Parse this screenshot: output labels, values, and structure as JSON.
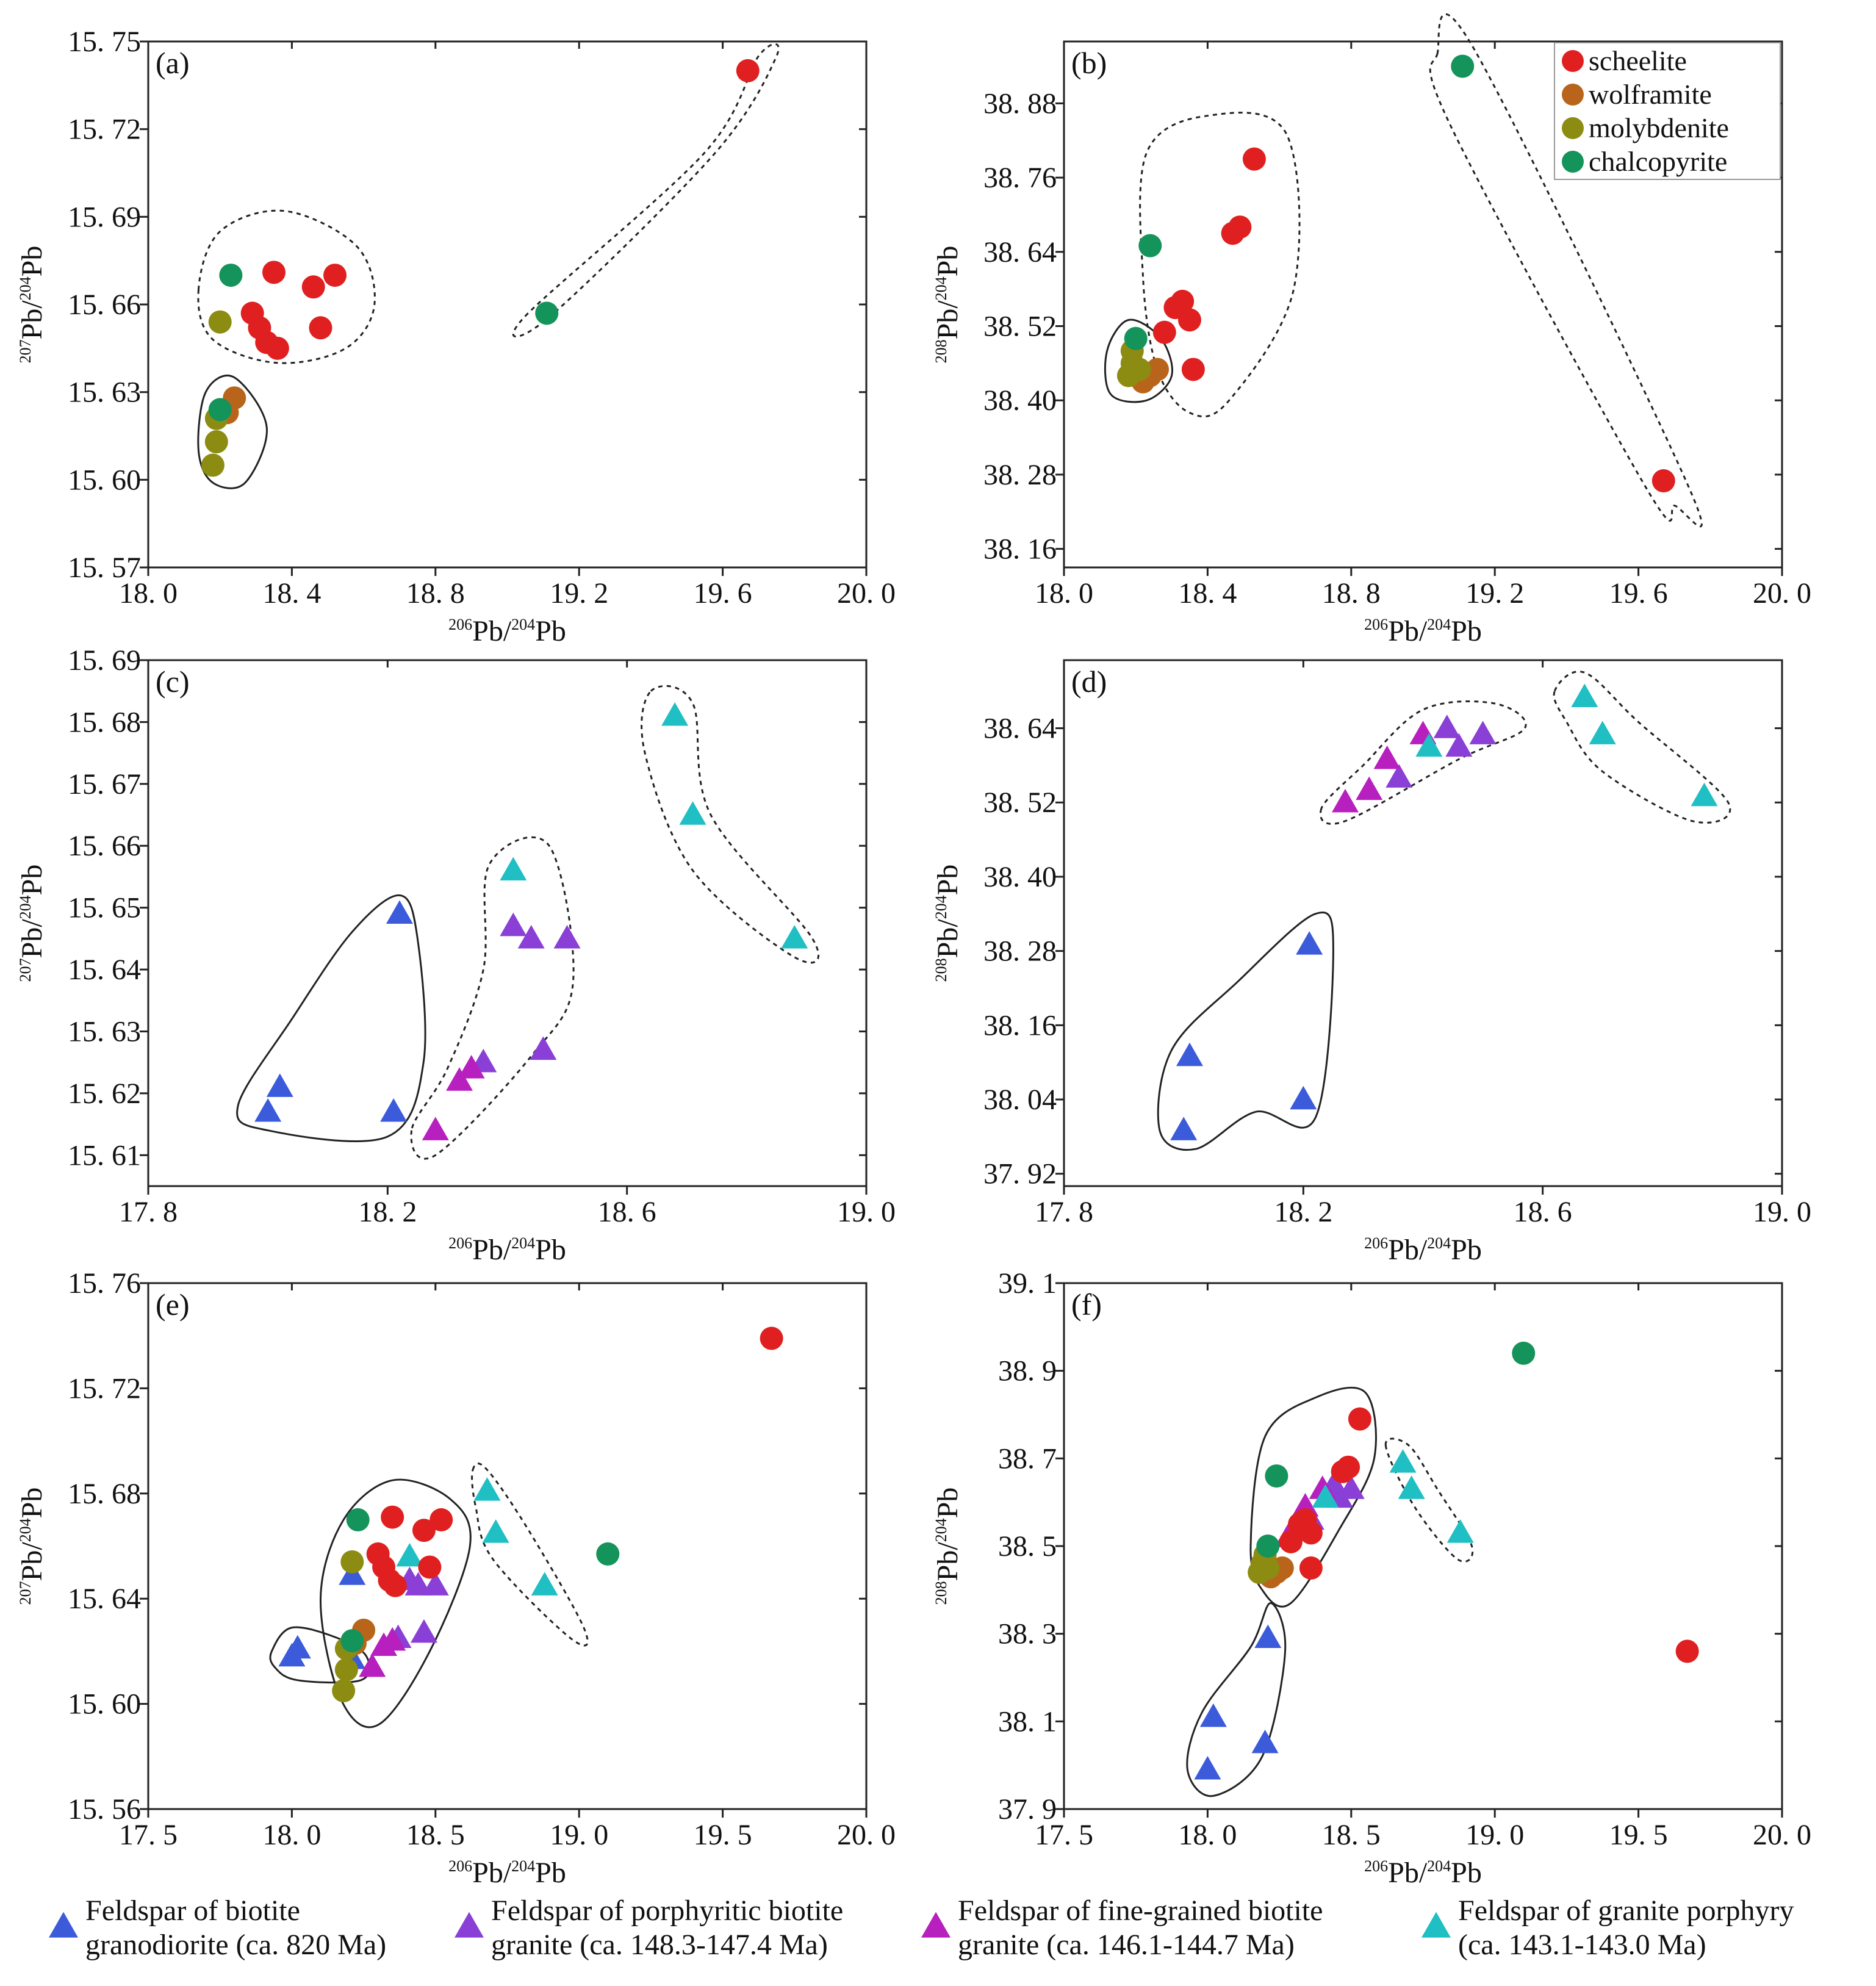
{
  "colors": {
    "scheelite": "#e02020",
    "wolframite": "#b8651b",
    "molybdenite": "#8c8c12",
    "chalcopyrite": "#14935a",
    "biotite_granodiorite": "#3b5bdb",
    "porphyritic_biotite_granite": "#8a3fd6",
    "fine_grained_biotite_granite": "#b81fbf",
    "granite_porphyry": "#1fbfc4"
  },
  "mineral_legend": [
    {
      "key": "scheelite",
      "label": "scheelite"
    },
    {
      "key": "wolframite",
      "label": "wolframite"
    },
    {
      "key": "molybdenite",
      "label": "molybdenite"
    },
    {
      "key": "chalcopyrite",
      "label": "chalcopyrite"
    }
  ],
  "bottom_legend": [
    {
      "key": "biotite_granodiorite",
      "line1": "Feldspar of biotite",
      "line2": "granodiorite (ca. 820 Ma)"
    },
    {
      "key": "porphyritic_biotite_granite",
      "line1": "Feldspar of porphyritic biotite",
      "line2": "granite (ca. 148.3-147.4 Ma)"
    },
    {
      "key": "fine_grained_biotite_granite",
      "line1": "Feldspar of fine-grained biotite",
      "line2": "granite (ca. 146.1-144.7 Ma)"
    },
    {
      "key": "granite_porphyry",
      "line1": "Feldspar of granite  porphyry",
      "line2": "(ca. 143.1-143.0 Ma)"
    }
  ],
  "axis_text": {
    "x_sup": "206",
    "x_rest": "Pb/",
    "x_sup2": "204",
    "x_tail": "Pb",
    "y207_sup": "207",
    "y208_sup": "208",
    "y_rest": "Pb/",
    "y_sup2": "204",
    "y_tail": "Pb"
  },
  "chart_data": [
    {
      "id": "a",
      "label": "(a)",
      "type": "scatter",
      "xlabel": "206Pb/204Pb",
      "ylabel": "207Pb/204Pb",
      "xlim": [
        18.0,
        20.0
      ],
      "ylim": [
        15.57,
        15.75
      ],
      "xticks": [
        "18. 0",
        "18. 4",
        "18. 8",
        "19. 2",
        "19. 6",
        "20. 0"
      ],
      "yticks": [
        "15. 57",
        "15. 60",
        "15. 63",
        "15. 66",
        "15. 69",
        "15. 72",
        "15. 75"
      ],
      "series": [
        {
          "name": "scheelite",
          "marker": "circle",
          "points": [
            [
              18.29,
              15.657
            ],
            [
              18.31,
              15.652
            ],
            [
              18.33,
              15.647
            ],
            [
              18.36,
              15.645
            ],
            [
              18.35,
              15.671
            ],
            [
              18.46,
              15.666
            ],
            [
              18.52,
              15.67
            ],
            [
              18.48,
              15.652
            ],
            [
              19.67,
              15.74
            ]
          ]
        },
        {
          "name": "wolframite",
          "marker": "circle",
          "points": [
            [
              18.22,
              15.623
            ],
            [
              18.24,
              15.628
            ]
          ]
        },
        {
          "name": "molybdenite",
          "marker": "circle",
          "points": [
            [
              18.2,
              15.654
            ],
            [
              18.19,
              15.621
            ],
            [
              18.19,
              15.613
            ],
            [
              18.18,
              15.605
            ]
          ]
        },
        {
          "name": "chalcopyrite",
          "marker": "circle",
          "points": [
            [
              18.23,
              15.67
            ],
            [
              18.2,
              15.624
            ],
            [
              19.11,
              15.657
            ]
          ]
        }
      ]
    },
    {
      "id": "b",
      "label": "(b)",
      "type": "scatter",
      "xlabel": "206Pb/204Pb",
      "ylabel": "208Pb/204Pb",
      "xlim": [
        18.0,
        20.0
      ],
      "ylim": [
        38.13,
        38.98
      ],
      "xticks": [
        "18. 0",
        "18. 4",
        "18. 8",
        "19. 2",
        "19. 6",
        "20. 0"
      ],
      "yticks": [
        "38. 16",
        "38. 28",
        "38. 40",
        "38. 52",
        "38. 64",
        "38. 76",
        "38. 88"
      ],
      "series": [
        {
          "name": "scheelite",
          "marker": "circle",
          "points": [
            [
              18.28,
              38.51
            ],
            [
              18.31,
              38.55
            ],
            [
              18.33,
              38.56
            ],
            [
              18.35,
              38.53
            ],
            [
              18.36,
              38.45
            ],
            [
              18.47,
              38.67
            ],
            [
              18.49,
              38.68
            ],
            [
              18.53,
              38.79
            ],
            [
              19.67,
              38.27
            ]
          ]
        },
        {
          "name": "wolframite",
          "marker": "circle",
          "points": [
            [
              18.24,
              38.44
            ],
            [
              18.22,
              38.43
            ],
            [
              18.26,
              38.45
            ]
          ]
        },
        {
          "name": "molybdenite",
          "marker": "circle",
          "points": [
            [
              18.19,
              38.48
            ],
            [
              18.19,
              38.46
            ],
            [
              18.18,
              38.44
            ],
            [
              18.21,
              38.45
            ]
          ]
        },
        {
          "name": "chalcopyrite",
          "marker": "circle",
          "points": [
            [
              18.2,
              38.5
            ],
            [
              18.24,
              38.65
            ],
            [
              19.11,
              38.94
            ]
          ]
        }
      ]
    },
    {
      "id": "c",
      "label": "(c)",
      "type": "scatter",
      "xlabel": "206Pb/204Pb",
      "ylabel": "207Pb/204Pb",
      "xlim": [
        17.8,
        19.0
      ],
      "ylim": [
        15.605,
        15.69
      ],
      "xticks": [
        "17. 8",
        "18. 2",
        "18. 6",
        "19. 0"
      ],
      "yticks": [
        "15. 61",
        "15. 62",
        "15. 63",
        "15. 64",
        "15. 65",
        "15. 66",
        "15. 67",
        "15. 68",
        "15. 69"
      ],
      "series": [
        {
          "name": "biotite_granodiorite",
          "marker": "triangle",
          "points": [
            [
              18.0,
              15.617
            ],
            [
              18.02,
              15.621
            ],
            [
              18.21,
              15.617
            ],
            [
              18.22,
              15.649
            ]
          ]
        },
        {
          "name": "porphyritic_biotite_granite",
          "marker": "triangle",
          "points": [
            [
              18.36,
              15.625
            ],
            [
              18.41,
              15.647
            ],
            [
              18.44,
              15.645
            ],
            [
              18.46,
              15.627
            ],
            [
              18.5,
              15.645
            ]
          ]
        },
        {
          "name": "fine_grained_biotite_granite",
          "marker": "triangle",
          "points": [
            [
              18.28,
              15.614
            ],
            [
              18.32,
              15.622
            ],
            [
              18.34,
              15.624
            ]
          ]
        },
        {
          "name": "granite_porphyry",
          "marker": "triangle",
          "points": [
            [
              18.41,
              15.656
            ],
            [
              18.68,
              15.681
            ],
            [
              18.71,
              15.665
            ],
            [
              18.88,
              15.645
            ]
          ]
        }
      ]
    },
    {
      "id": "d",
      "label": "(d)",
      "type": "scatter",
      "xlabel": "206Pb/204Pb",
      "ylabel": "208Pb/204Pb",
      "xlim": [
        17.8,
        19.0
      ],
      "ylim": [
        37.9,
        38.75
      ],
      "xticks": [
        "17. 8",
        "18. 2",
        "18. 6",
        "19. 0"
      ],
      "yticks": [
        "37. 92",
        "38. 04",
        "38. 16",
        "38. 28",
        "38. 40",
        "38. 52",
        "38. 64"
      ],
      "series": [
        {
          "name": "biotite_granodiorite",
          "marker": "triangle",
          "points": [
            [
              18.0,
              37.99
            ],
            [
              18.01,
              38.11
            ],
            [
              18.2,
              38.04
            ],
            [
              18.21,
              38.29
            ]
          ]
        },
        {
          "name": "porphyritic_biotite_granite",
          "marker": "triangle",
          "points": [
            [
              18.36,
              38.56
            ],
            [
              18.44,
              38.64
            ],
            [
              18.46,
              38.61
            ],
            [
              18.5,
              38.63
            ]
          ]
        },
        {
          "name": "fine_grained_biotite_granite",
          "marker": "triangle",
          "points": [
            [
              18.27,
              38.52
            ],
            [
              18.31,
              38.54
            ],
            [
              18.34,
              38.59
            ],
            [
              18.4,
              38.63
            ]
          ]
        },
        {
          "name": "granite_porphyry",
          "marker": "triangle",
          "points": [
            [
              18.41,
              38.61
            ],
            [
              18.67,
              38.69
            ],
            [
              18.7,
              38.63
            ],
            [
              18.87,
              38.53
            ]
          ]
        }
      ]
    },
    {
      "id": "e",
      "label": "(e)",
      "type": "scatter",
      "xlabel": "206Pb/204Pb",
      "ylabel": "207Pb/204Pb",
      "xlim": [
        17.5,
        20.0
      ],
      "ylim": [
        15.56,
        15.76
      ],
      "xticks": [
        "17. 5",
        "18. 0",
        "18. 5",
        "19. 0",
        "19. 5",
        "20. 0"
      ],
      "yticks": [
        "15. 56",
        "15. 60",
        "15. 64",
        "15. 68",
        "15. 72",
        "15. 76"
      ],
      "series": [
        {
          "name": "biotite_granodiorite",
          "marker": "triangle",
          "points": [
            [
              18.0,
              15.618
            ],
            [
              18.02,
              15.621
            ],
            [
              18.21,
              15.617
            ],
            [
              18.21,
              15.649
            ]
          ]
        },
        {
          "name": "porphyritic_biotite_granite",
          "marker": "triangle",
          "points": [
            [
              18.37,
              15.625
            ],
            [
              18.41,
              15.647
            ],
            [
              18.44,
              15.645
            ],
            [
              18.46,
              15.627
            ],
            [
              18.5,
              15.645
            ]
          ]
        },
        {
          "name": "fine_grained_biotite_granite",
          "marker": "triangle",
          "points": [
            [
              18.28,
              15.614
            ],
            [
              18.32,
              15.622
            ],
            [
              18.35,
              15.624
            ]
          ]
        },
        {
          "name": "granite_porphyry",
          "marker": "triangle",
          "points": [
            [
              18.41,
              15.656
            ],
            [
              18.68,
              15.681
            ],
            [
              18.71,
              15.665
            ],
            [
              18.88,
              15.645
            ]
          ]
        },
        {
          "name": "scheelite",
          "marker": "circle",
          "points": [
            [
              18.3,
              15.657
            ],
            [
              18.32,
              15.652
            ],
            [
              18.34,
              15.647
            ],
            [
              18.36,
              15.645
            ],
            [
              18.35,
              15.671
            ],
            [
              18.46,
              15.666
            ],
            [
              18.52,
              15.67
            ],
            [
              18.48,
              15.652
            ],
            [
              19.67,
              15.739
            ]
          ]
        },
        {
          "name": "wolframite",
          "marker": "circle",
          "points": [
            [
              18.22,
              15.623
            ],
            [
              18.25,
              15.628
            ]
          ]
        },
        {
          "name": "molybdenite",
          "marker": "circle",
          "points": [
            [
              18.21,
              15.654
            ],
            [
              18.19,
              15.621
            ],
            [
              18.19,
              15.613
            ],
            [
              18.18,
              15.605
            ]
          ]
        },
        {
          "name": "chalcopyrite",
          "marker": "circle",
          "points": [
            [
              18.23,
              15.67
            ],
            [
              18.21,
              15.624
            ],
            [
              19.1,
              15.657
            ]
          ]
        }
      ]
    },
    {
      "id": "f",
      "label": "(f)",
      "type": "scatter",
      "xlabel": "206Pb/204Pb",
      "ylabel": "208Pb/204Pb",
      "xlim": [
        17.5,
        20.0
      ],
      "ylim": [
        37.9,
        39.1
      ],
      "xticks": [
        "17. 5",
        "18. 0",
        "18. 5",
        "19. 0",
        "19. 5",
        "20. 0"
      ],
      "yticks": [
        "37. 9",
        "38. 1",
        "38. 3",
        "38. 5",
        "38. 7",
        "38. 9",
        "39. 1"
      ],
      "series": [
        {
          "name": "biotite_granodiorite",
          "marker": "triangle",
          "points": [
            [
              18.0,
              37.99
            ],
            [
              18.02,
              38.11
            ],
            [
              18.2,
              38.05
            ],
            [
              18.21,
              38.29
            ]
          ]
        },
        {
          "name": "porphyritic_biotite_granite",
          "marker": "triangle",
          "points": [
            [
              18.36,
              38.56
            ],
            [
              18.44,
              38.64
            ],
            [
              18.46,
              38.61
            ],
            [
              18.5,
              38.63
            ]
          ]
        },
        {
          "name": "fine_grained_biotite_granite",
          "marker": "triangle",
          "points": [
            [
              18.28,
              38.52
            ],
            [
              18.32,
              38.54
            ],
            [
              18.34,
              38.59
            ],
            [
              18.4,
              38.63
            ]
          ]
        },
        {
          "name": "granite_porphyry",
          "marker": "triangle",
          "points": [
            [
              18.41,
              38.61
            ],
            [
              18.68,
              38.69
            ],
            [
              18.71,
              38.63
            ],
            [
              18.88,
              38.53
            ]
          ]
        },
        {
          "name": "scheelite",
          "marker": "circle",
          "points": [
            [
              18.29,
              38.51
            ],
            [
              18.32,
              38.55
            ],
            [
              18.34,
              38.56
            ],
            [
              18.36,
              38.53
            ],
            [
              18.36,
              38.45
            ],
            [
              18.47,
              38.67
            ],
            [
              18.49,
              38.68
            ],
            [
              18.53,
              38.79
            ],
            [
              19.67,
              38.26
            ]
          ]
        },
        {
          "name": "wolframite",
          "marker": "circle",
          "points": [
            [
              18.24,
              38.44
            ],
            [
              18.22,
              38.43
            ],
            [
              18.26,
              38.45
            ]
          ]
        },
        {
          "name": "molybdenite",
          "marker": "circle",
          "points": [
            [
              18.2,
              38.48
            ],
            [
              18.19,
              38.46
            ],
            [
              18.18,
              38.44
            ],
            [
              18.21,
              38.45
            ]
          ]
        },
        {
          "name": "chalcopyrite",
          "marker": "circle",
          "points": [
            [
              18.21,
              38.5
            ],
            [
              18.24,
              38.66
            ],
            [
              19.1,
              38.94
            ]
          ]
        }
      ]
    }
  ]
}
